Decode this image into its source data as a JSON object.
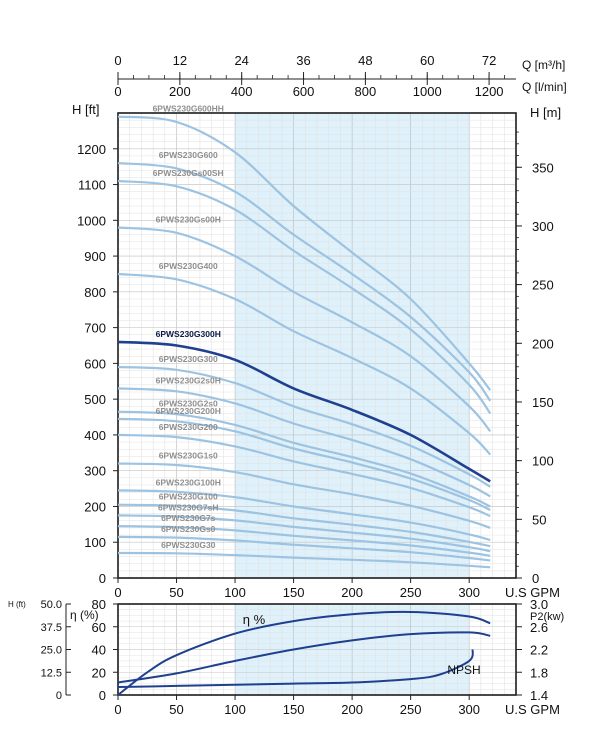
{
  "chart_data": [
    {
      "type": "line",
      "top_axis_q_m3h": {
        "label": "Q [m³/h]",
        "ticks": [
          "0",
          "12",
          "24",
          "36",
          "48",
          "60",
          "72"
        ]
      },
      "top_axis_q_lmin": {
        "label": "Q [l/min]",
        "ticks": [
          "0",
          "200",
          "400",
          "600",
          "800",
          "1000",
          "1200"
        ]
      },
      "xlabel": "U.S GPM",
      "x_ticks": [
        "0",
        "50",
        "100",
        "150",
        "200",
        "250",
        "300"
      ],
      "xlim": [
        0,
        340
      ],
      "ylabel_left": "H [ft]",
      "y_ticks_left": [
        "0",
        "100",
        "200",
        "300",
        "400",
        "500",
        "600",
        "700",
        "800",
        "900",
        "1000",
        "1100",
        "1200"
      ],
      "ylim": [
        0,
        1300
      ],
      "ylabel_right": "H [m]",
      "y_ticks_right": [
        "0",
        "50",
        "100",
        "150",
        "200",
        "250",
        "300",
        "350"
      ],
      "shaded_range": [
        100,
        300
      ],
      "grid": true,
      "highlight_color": "#1f3f8f",
      "line_color": "#9cc3e2",
      "shade_color": "#dff1fa",
      "series": [
        {
          "name": "6PWS230G600HH",
          "x": [
            0,
            50,
            100,
            150,
            200,
            250,
            300,
            318
          ],
          "y": [
            1290,
            1275,
            1190,
            1040,
            910,
            780,
            600,
            525
          ]
        },
        {
          "name": "6PWS230G600",
          "x": [
            0,
            50,
            100,
            150,
            200,
            250,
            300,
            318
          ],
          "y": [
            1160,
            1145,
            1080,
            960,
            850,
            730,
            575,
            495
          ]
        },
        {
          "name": "6PWS230Gs00SH",
          "x": [
            0,
            50,
            100,
            150,
            200,
            250,
            300,
            318
          ],
          "y": [
            1110,
            1095,
            1030,
            915,
            810,
            695,
            540,
            460
          ]
        },
        {
          "name": "6PWS230Gs00H",
          "x": [
            0,
            50,
            100,
            150,
            200,
            250,
            300,
            318
          ],
          "y": [
            980,
            965,
            900,
            800,
            715,
            620,
            480,
            410
          ]
        },
        {
          "name": "6PWS230G400",
          "x": [
            0,
            50,
            100,
            150,
            200,
            250,
            300,
            318
          ],
          "y": [
            850,
            835,
            780,
            690,
            615,
            530,
            405,
            345
          ]
        },
        {
          "name": "6PWS230G300H",
          "x": [
            0,
            50,
            100,
            150,
            200,
            250,
            300,
            318
          ],
          "y": [
            660,
            650,
            610,
            530,
            470,
            400,
            305,
            270
          ]
        },
        {
          "name": "6PWS230G300",
          "x": [
            0,
            50,
            100,
            150,
            200,
            250,
            300,
            318
          ],
          "y": [
            590,
            582,
            545,
            480,
            430,
            370,
            290,
            255
          ]
        },
        {
          "name": "6PWS230G2s0H",
          "x": [
            0,
            50,
            100,
            150,
            200,
            250,
            300,
            318
          ],
          "y": [
            530,
            522,
            488,
            432,
            386,
            332,
            260,
            228
          ]
        },
        {
          "name": "6PWS230G2s0",
          "x": [
            0,
            50,
            100,
            150,
            200,
            250,
            300,
            318
          ],
          "y": [
            465,
            458,
            428,
            378,
            338,
            292,
            228,
            200
          ]
        },
        {
          "name": "6PWS230G200H",
          "x": [
            0,
            50,
            100,
            150,
            200,
            250,
            300,
            318
          ],
          "y": [
            445,
            438,
            410,
            362,
            323,
            278,
            218,
            190
          ]
        },
        {
          "name": "6PWS230G200",
          "x": [
            0,
            50,
            100,
            150,
            200,
            250,
            300,
            318
          ],
          "y": [
            400,
            394,
            368,
            326,
            291,
            252,
            198,
            173
          ]
        },
        {
          "name": "6PWS230G1s0",
          "x": [
            0,
            50,
            100,
            150,
            200,
            250,
            300,
            318
          ],
          "y": [
            320,
            316,
            296,
            262,
            234,
            202,
            160,
            140
          ]
        },
        {
          "name": "6PWS230G100H",
          "x": [
            0,
            50,
            100,
            150,
            200,
            250,
            300,
            318
          ],
          "y": [
            245,
            241,
            226,
            200,
            178,
            155,
            122,
            106
          ]
        },
        {
          "name": "6PWS230G100",
          "x": [
            0,
            50,
            100,
            150,
            200,
            250,
            300,
            318
          ],
          "y": [
            205,
            202,
            189,
            167,
            149,
            129,
            101,
            89
          ]
        },
        {
          "name": "6PWS230G7sH",
          "x": [
            0,
            50,
            100,
            150,
            200,
            250,
            300,
            318
          ],
          "y": [
            175,
            172,
            161,
            143,
            127,
            110,
            86,
            75
          ]
        },
        {
          "name": "6PWS230G7s",
          "x": [
            0,
            50,
            100,
            150,
            200,
            250,
            300,
            318
          ],
          "y": [
            145,
            142,
            133,
            118,
            105,
            91,
            71,
            62
          ]
        },
        {
          "name": "6PWS230Gs0",
          "x": [
            0,
            50,
            100,
            150,
            200,
            250,
            300,
            318
          ],
          "y": [
            115,
            113,
            105,
            93,
            83,
            72,
            56,
            49
          ]
        },
        {
          "name": "6PWS230G30",
          "x": [
            0,
            50,
            100,
            150,
            200,
            250,
            300,
            318
          ],
          "y": [
            70,
            69,
            64,
            57,
            51,
            44,
            34,
            30
          ]
        }
      ]
    },
    {
      "type": "line",
      "xlabel": "U.S GPM",
      "x_ticks": [
        "0",
        "50",
        "100",
        "150",
        "200",
        "250",
        "300"
      ],
      "xlim": [
        0,
        340
      ],
      "ylabel_eff": "η (%)",
      "y_ticks_eff": [
        "0",
        "20",
        "40",
        "60",
        "80"
      ],
      "ylim_eff": [
        0,
        80
      ],
      "ylabel_npsh": "H (ft)",
      "y_ticks_npsh": [
        "0",
        "12.5",
        "25.0",
        "37.5",
        "50.0"
      ],
      "ylabel_p2": "P2(kw)",
      "y_ticks_p2": [
        "1.4",
        "1.8",
        "2.2",
        "2.6",
        "3.0"
      ],
      "ylim_p2": [
        1.4,
        3.0
      ],
      "shaded_range": [
        100,
        300
      ],
      "series": [
        {
          "name": "η %",
          "axis": "eff",
          "x": [
            0,
            25,
            50,
            100,
            150,
            200,
            250,
            300,
            318
          ],
          "y": [
            0,
            20,
            35,
            54,
            65,
            71,
            73,
            69,
            63
          ]
        },
        {
          "name": "P2",
          "axis": "p2",
          "x": [
            0,
            50,
            100,
            150,
            200,
            250,
            300,
            318
          ],
          "y": [
            1.62,
            1.78,
            2.0,
            2.2,
            2.36,
            2.47,
            2.5,
            2.44
          ]
        },
        {
          "name": "NPSH",
          "axis": "eff",
          "x": [
            0,
            50,
            100,
            150,
            200,
            250,
            275,
            300,
            303
          ],
          "y": [
            7,
            8,
            9,
            10,
            11,
            14,
            18,
            30,
            40
          ]
        }
      ],
      "label_eff": "η %",
      "label_npsh": "NPSH"
    }
  ]
}
